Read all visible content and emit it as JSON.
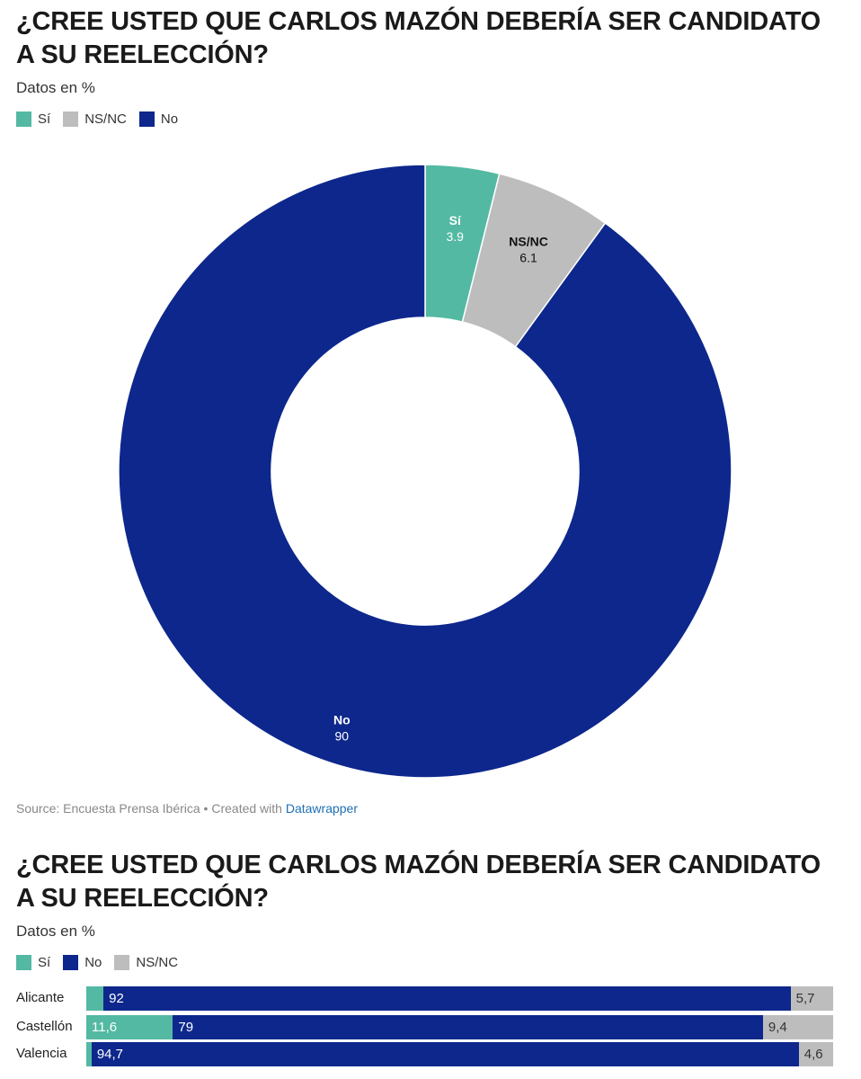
{
  "chart1": {
    "title": "¿CREE USTED QUE CARLOS MAZÓN DEBERÍA SER CANDIDATO A SU REELECCIÓN?",
    "subtitle": "Datos en %",
    "legend": [
      {
        "label": "Sí",
        "color": "#53b9a2"
      },
      {
        "label": "NS/NC",
        "color": "#bdbdbd"
      },
      {
        "label": "No",
        "color": "#0d278c"
      }
    ],
    "source_prefix": "Source: Encuesta Prensa Ibérica • Created with ",
    "source_link": "Datawrapper"
  },
  "chart2": {
    "title": "¿CREE USTED QUE CARLOS MAZÓN DEBERÍA SER CANDIDATO A SU REELECCIÓN?",
    "subtitle": "Datos en %",
    "legend": [
      {
        "label": "Sí",
        "color": "#53b9a2"
      },
      {
        "label": "No",
        "color": "#0d278c"
      },
      {
        "label": "NS/NC",
        "color": "#bdbdbd"
      }
    ]
  },
  "chart_data": [
    {
      "type": "pie",
      "donut": true,
      "slices": [
        {
          "label": "Sí",
          "value": 3.9,
          "display": "3.9",
          "color": "#53b9a2",
          "text_color": "#ffffff"
        },
        {
          "label": "NS/NC",
          "value": 6.1,
          "display": "6.1",
          "color": "#bdbdbd",
          "text_color": "#111111"
        },
        {
          "label": "No",
          "value": 90,
          "display": "90",
          "color": "#0d278c",
          "text_color": "#ffffff"
        }
      ]
    },
    {
      "type": "bar",
      "orientation": "horizontal",
      "stacked": true,
      "categories": [
        "Alicante",
        "Castellón",
        "Valencia"
      ],
      "series": [
        {
          "name": "Sí",
          "color": "#53b9a2",
          "text_color": "#ffffff",
          "values": [
            2.3,
            11.6,
            0.7
          ],
          "labels": [
            "",
            "11,6",
            ""
          ]
        },
        {
          "name": "No",
          "color": "#0d278c",
          "text_color": "#ffffff",
          "values": [
            92,
            79,
            94.7
          ],
          "labels": [
            "92",
            "79",
            "94,7"
          ]
        },
        {
          "name": "NS/NC",
          "color": "#bdbdbd",
          "text_color": "#333333",
          "values": [
            5.7,
            9.4,
            4.6
          ],
          "labels": [
            "5,7",
            "9,4",
            "4,6"
          ]
        }
      ]
    }
  ]
}
